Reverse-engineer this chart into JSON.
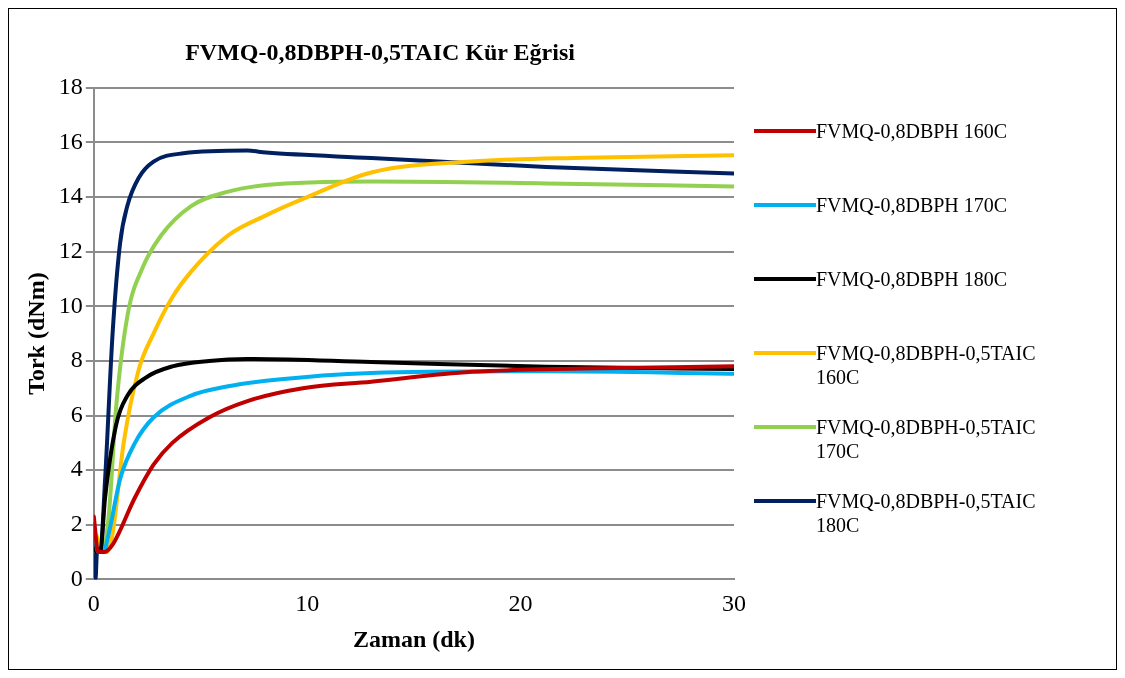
{
  "chart_data": {
    "type": "line",
    "title": "FVMQ-0,8DBPH-0,5TAIC Kür Eğrisi",
    "xlabel": "Zaman (dk)",
    "ylabel": "Tork (dNm)",
    "xlim": [
      0,
      30
    ],
    "xticks": [
      0,
      10,
      20,
      30
    ],
    "ylim": [
      0,
      18
    ],
    "yticks": [
      0,
      2,
      4,
      6,
      8,
      10,
      12,
      14,
      16,
      18
    ],
    "grid": "y",
    "legend": "right",
    "marker": "none",
    "line_style": "solid",
    "series": [
      {
        "name": "FVMQ-0,8DBPH 160C",
        "color": "#c00000",
        "x": [
          0,
          0.2,
          0.5,
          0.88,
          1.93,
          2.8,
          3.68,
          5.4,
          7.2,
          9.8,
          13,
          17.7,
          23,
          30
        ],
        "values": [
          2.3,
          1.0,
          1.0,
          1.27,
          3.0,
          4.2,
          5.0,
          5.93,
          6.53,
          7.0,
          7.24,
          7.6,
          7.72,
          7.8
        ]
      },
      {
        "name": "FVMQ-0,8DBPH 170C",
        "color": "#00b0f0",
        "x": [
          0,
          0.2,
          0.45,
          0.7,
          1.23,
          1.93,
          2.8,
          4.56,
          6.3,
          8.07,
          13,
          21.2,
          30
        ],
        "values": [
          2.0,
          1.0,
          1.0,
          1.67,
          3.67,
          5.0,
          5.93,
          6.73,
          7.07,
          7.27,
          7.56,
          7.62,
          7.53
        ]
      },
      {
        "name": "FVMQ-0,8DBPH 180C",
        "color": "#000000",
        "x": [
          0,
          0.1,
          0.3,
          0.53,
          1.05,
          1.58,
          2.46,
          3.68,
          5.4,
          7.2,
          13,
          21.2,
          30
        ],
        "values": [
          2.0,
          1.0,
          1.0,
          3.0,
          5.67,
          6.73,
          7.4,
          7.8,
          8.0,
          8.07,
          7.96,
          7.79,
          7.7
        ]
      },
      {
        "name": "FVMQ-0,8DBPH-0,5TAIC 160C",
        "color": "#ffc000",
        "x": [
          0,
          0.6,
          0.88,
          1.4,
          2.1,
          2.8,
          3.68,
          4.56,
          6.3,
          8.07,
          9.8,
          13,
          17.7,
          23,
          30
        ],
        "values": [
          1.8,
          1.0,
          1.67,
          5.0,
          7.67,
          9.0,
          10.33,
          11.27,
          12.6,
          13.33,
          13.93,
          14.9,
          15.3,
          15.44,
          15.53
        ]
      },
      {
        "name": "FVMQ-0,8DBPH-0,5TAIC 170C",
        "color": "#92d050",
        "x": [
          0,
          0.1,
          0.4,
          0.7,
          1.05,
          1.58,
          2.28,
          3.16,
          4.56,
          6.3,
          8.07,
          13,
          21.2,
          30
        ],
        "values": [
          1.9,
          1.0,
          1.0,
          2.33,
          6.33,
          9.67,
          11.4,
          12.6,
          13.67,
          14.2,
          14.44,
          14.57,
          14.5,
          14.39
        ]
      },
      {
        "name": "FVMQ-0,8DBPH-0,5TAIC 180C",
        "color": "#002060",
        "x": [
          0,
          0.08,
          0.15,
          0.3,
          0.53,
          0.88,
          1.23,
          1.58,
          2.1,
          2.8,
          4.2,
          7.2,
          8.07,
          13,
          21.2,
          30
        ],
        "values": [
          2.0,
          0,
          1.0,
          1.0,
          3.67,
          9.0,
          12.3,
          13.7,
          14.7,
          15.3,
          15.6,
          15.7,
          15.63,
          15.43,
          15.1,
          14.86
        ]
      }
    ]
  }
}
